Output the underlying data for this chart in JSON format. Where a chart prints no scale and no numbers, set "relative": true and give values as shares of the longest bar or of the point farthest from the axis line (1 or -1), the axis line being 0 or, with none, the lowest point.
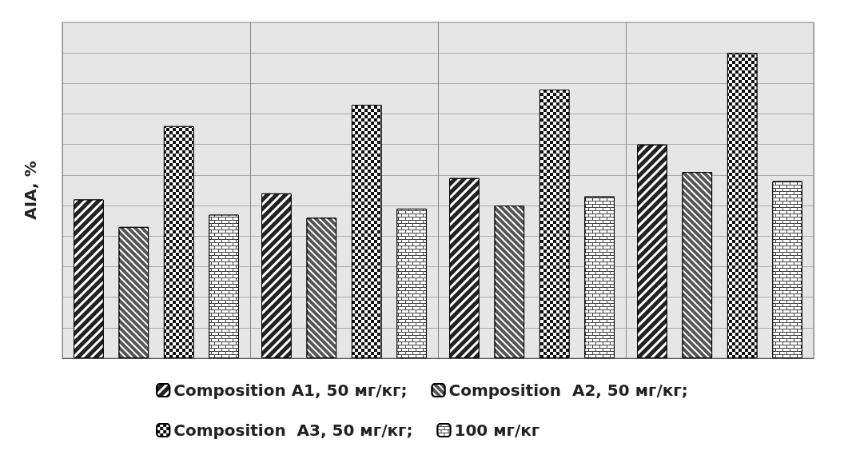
{
  "chart_data": {
    "type": "bar",
    "ylabel": "AIA, %",
    "relative": true,
    "categories": [
      null,
      null,
      null,
      null
    ],
    "grid": true,
    "legend": "bottom",
    "series": [
      {
        "name": "Composition A1, 50 мг/кг;",
        "color": "#222222",
        "values": [
          0.52,
          0.54,
          0.59,
          0.7
        ]
      },
      {
        "name": "Composition  A2, 50 мг/кг;",
        "color": "#555555",
        "values": [
          0.43,
          0.46,
          0.5,
          0.61
        ]
      },
      {
        "name": "Composition  A3, 50 мг/кг;",
        "color": "#111111",
        "values": [
          0.76,
          0.83,
          0.88,
          1
        ]
      },
      {
        "name": "100 мг/кг",
        "color": "#444444",
        "values": [
          0.47,
          0.49,
          0.53,
          0.58
        ]
      }
    ]
  }
}
